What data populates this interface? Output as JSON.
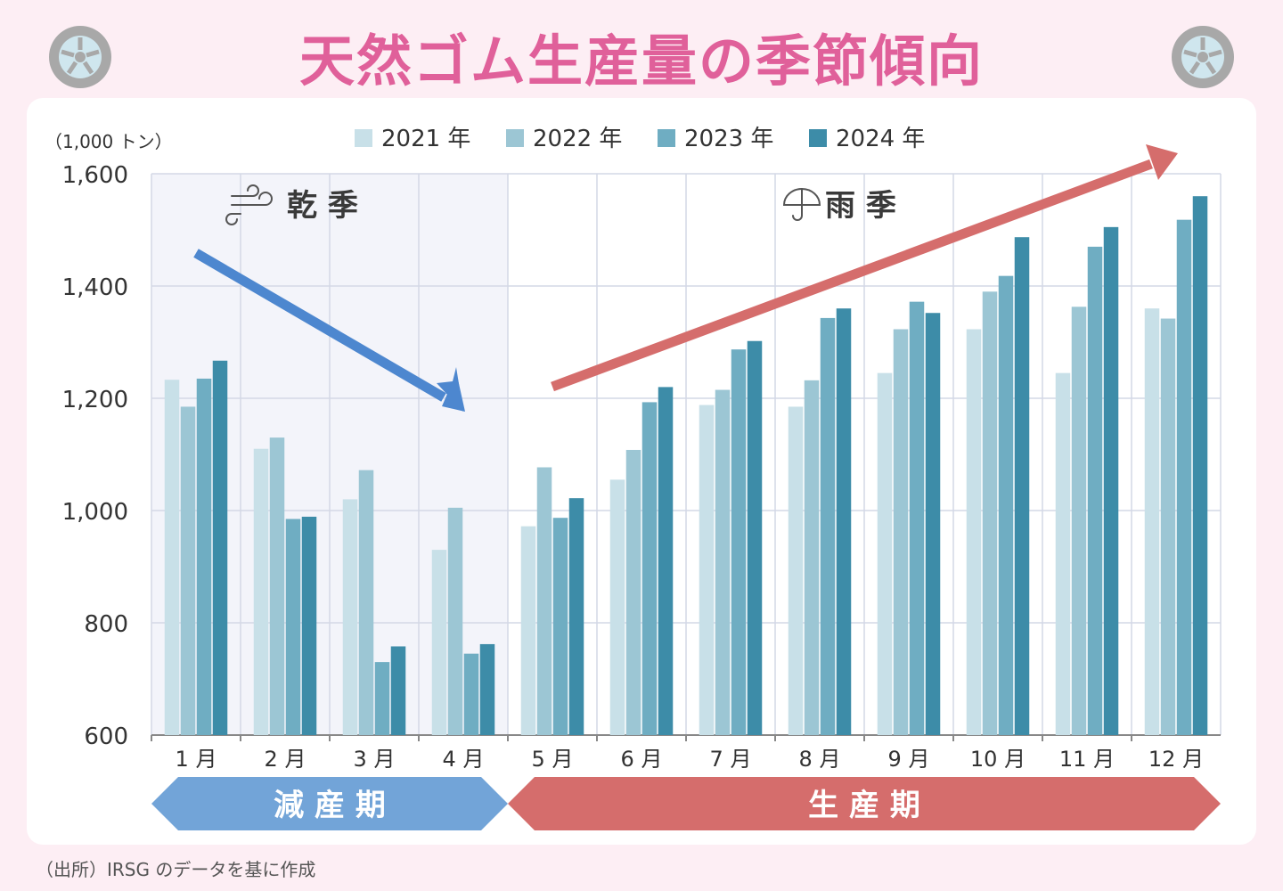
{
  "title": "天然ゴム生産量の季節傾向",
  "source": "（出所）IRSG のデータを基に作成",
  "chart_data": {
    "type": "bar",
    "title": "天然ゴム生産量の季節傾向",
    "unit_label": "（1,000 トン）",
    "categories": [
      "1 月",
      "2 月",
      "3 月",
      "4 月",
      "5 月",
      "6 月",
      "7 月",
      "8 月",
      "9 月",
      "10 月",
      "11 月",
      "12 月"
    ],
    "series": [
      {
        "name": "2021 年",
        "color": "#c8e0e8",
        "values": [
          1233,
          1110,
          1020,
          930,
          972,
          1055,
          1188,
          1185,
          1245,
          1323,
          1245,
          1360
        ]
      },
      {
        "name": "2022 年",
        "color": "#9cc6d4",
        "values": [
          1185,
          1130,
          1072,
          1005,
          1077,
          1108,
          1215,
          1232,
          1323,
          1390,
          1363,
          1342
        ]
      },
      {
        "name": "2023 年",
        "color": "#6fadc2",
        "values": [
          1235,
          985,
          730,
          745,
          987,
          1193,
          1287,
          1343,
          1372,
          1418,
          1470,
          1518
        ]
      },
      {
        "name": "2024 年",
        "color": "#3d8ca8",
        "values": [
          1267,
          989,
          758,
          762,
          1022,
          1220,
          1302,
          1360,
          1352,
          1487,
          1505,
          1560
        ]
      }
    ],
    "ylim": [
      600,
      1600
    ],
    "yticks": [
      600,
      800,
      1000,
      1200,
      1400,
      1600
    ],
    "grid": true,
    "legend_position": "top",
    "annotations": {
      "dry_season": {
        "label": "乾 季",
        "months": [
          "1 月",
          "2 月",
          "3 月",
          "4 月"
        ],
        "icon": "wind-icon",
        "shade_color": "#f3f4fa"
      },
      "rainy_season": {
        "label": "雨 季",
        "icon": "umbrella-icon"
      },
      "decline_period": {
        "label": "減 産 期",
        "color": "#72a4d8"
      },
      "production_period": {
        "label": "生 産 期",
        "color": "#d56d6c"
      },
      "down_arrow_color": "#4d87cf",
      "up_arrow_color": "#d56d6c"
    }
  }
}
